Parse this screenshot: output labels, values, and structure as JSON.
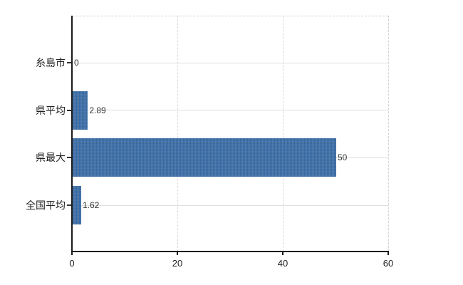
{
  "chart_data": {
    "type": "bar",
    "orientation": "horizontal",
    "title": "",
    "xlabel": "",
    "ylabel": "",
    "categories": [
      "糸島市",
      "県平均",
      "県最大",
      "全国平均"
    ],
    "values": [
      0,
      2.89,
      50,
      1.62
    ],
    "value_labels": [
      "0",
      "2.89",
      "50",
      "1.62"
    ],
    "xlim": [
      0,
      60
    ],
    "xticks": [
      0,
      20,
      40,
      60
    ],
    "xtick_labels": [
      "0",
      "20",
      "40",
      "60"
    ],
    "grid": true,
    "legend": false,
    "colors": {
      "bar": "#3d6fa8",
      "axis": "#1a1a1a",
      "grid_horizontal": "#d9e2d9",
      "grid_vertical": "#e0d8de",
      "frame_dashed": "#d6cfd5",
      "text": "#222222",
      "background": "#ffffff"
    }
  }
}
